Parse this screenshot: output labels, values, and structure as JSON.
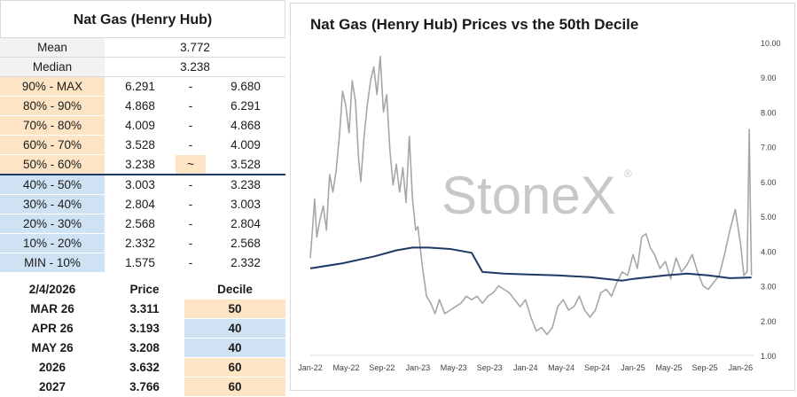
{
  "left_panel": {
    "title": "Nat Gas (Henry Hub)",
    "mean_label": "Mean",
    "mean_value": "3.772",
    "median_label": "Median",
    "median_value": "3.238",
    "deciles": [
      {
        "label": "90% - MAX",
        "low": "6.291",
        "sep": "-",
        "high": "9.680",
        "tier": "top"
      },
      {
        "label": "80% - 90%",
        "low": "4.868",
        "sep": "-",
        "high": "6.291",
        "tier": "top"
      },
      {
        "label": "70% - 80%",
        "low": "4.009",
        "sep": "-",
        "high": "4.868",
        "tier": "top"
      },
      {
        "label": "60% - 70%",
        "low": "3.528",
        "sep": "-",
        "high": "4.009",
        "tier": "top"
      },
      {
        "label": "50% - 60%",
        "low": "3.238",
        "sep": "~",
        "high": "3.528",
        "tier": "top"
      },
      {
        "label": "40% - 50%",
        "low": "3.003",
        "sep": "-",
        "high": "3.238",
        "tier": "bot"
      },
      {
        "label": "30% - 40%",
        "low": "2.804",
        "sep": "-",
        "high": "3.003",
        "tier": "bot"
      },
      {
        "label": "20% - 30%",
        "low": "2.568",
        "sep": "-",
        "high": "2.804",
        "tier": "bot"
      },
      {
        "label": "10% - 20%",
        "low": "2.332",
        "sep": "-",
        "high": "2.568",
        "tier": "bot"
      },
      {
        "label": "MIN - 10%",
        "low": "1.575",
        "sep": "-",
        "high": "2.332",
        "tier": "bot"
      }
    ],
    "price_table": {
      "headers": [
        "2/4/2026",
        "Price",
        "Decile"
      ],
      "rows": [
        {
          "contract": "MAR 26",
          "price": "3.311",
          "decile": "50",
          "tier": "top"
        },
        {
          "contract": "APR 26",
          "price": "3.193",
          "decile": "40",
          "tier": "bot"
        },
        {
          "contract": "MAY 26",
          "price": "3.208",
          "decile": "40",
          "tier": "bot"
        },
        {
          "contract": "2026",
          "price": "3.632",
          "decile": "60",
          "tier": "top"
        },
        {
          "contract": "2027",
          "price": "3.766",
          "decile": "60",
          "tier": "top"
        }
      ]
    }
  },
  "chart_data": {
    "type": "line",
    "title": "Nat Gas (Henry Hub) Prices vs the 50th Decile",
    "watermark": "StoneX",
    "watermark_mark": "®",
    "x_tick_labels": [
      "Jan-22",
      "May-22",
      "Sep-22",
      "Jan-23",
      "May-23",
      "Sep-23",
      "Jan-24",
      "May-24",
      "Sep-24",
      "Jan-25",
      "May-25",
      "Sep-25",
      "Jan-26"
    ],
    "y_tick_labels": [
      "1.00",
      "2.00",
      "3.00",
      "4.00",
      "5.00",
      "6.00",
      "7.00",
      "8.00",
      "9.00",
      "10.00"
    ],
    "ylim": [
      1,
      10
    ],
    "xlim": [
      2022.0,
      2026.12
    ],
    "grid": false,
    "colors": {
      "price": "#a6a6a6",
      "decile": "#1f3864"
    },
    "series": [
      {
        "key": "price",
        "x": [
          2022.0,
          2022.02,
          2022.04,
          2022.06,
          2022.09,
          2022.12,
          2022.15,
          2022.18,
          2022.21,
          2022.24,
          2022.27,
          2022.3,
          2022.33,
          2022.36,
          2022.39,
          2022.42,
          2022.45,
          2022.47,
          2022.5,
          2022.53,
          2022.56,
          2022.59,
          2022.62,
          2022.65,
          2022.68,
          2022.71,
          2022.74,
          2022.77,
          2022.8,
          2022.83,
          2022.86,
          2022.89,
          2022.92,
          2022.95,
          2022.98,
          2023.0,
          2023.04,
          2023.08,
          2023.12,
          2023.16,
          2023.2,
          2023.25,
          2023.3,
          2023.35,
          2023.4,
          2023.45,
          2023.5,
          2023.55,
          2023.6,
          2023.65,
          2023.7,
          2023.75,
          2023.8,
          2023.85,
          2023.9,
          2023.95,
          2024.0,
          2024.05,
          2024.1,
          2024.15,
          2024.2,
          2024.25,
          2024.3,
          2024.35,
          2024.4,
          2024.45,
          2024.5,
          2024.55,
          2024.6,
          2024.65,
          2024.7,
          2024.75,
          2024.8,
          2024.85,
          2024.9,
          2024.95,
          2025.0,
          2025.04,
          2025.08,
          2025.12,
          2025.16,
          2025.2,
          2025.25,
          2025.3,
          2025.35,
          2025.4,
          2025.45,
          2025.5,
          2025.55,
          2025.6,
          2025.65,
          2025.7,
          2025.75,
          2025.8,
          2025.85,
          2025.9,
          2025.95,
          2026.0,
          2026.03,
          2026.06,
          2026.08,
          2026.1
        ],
        "values": [
          3.8,
          4.6,
          5.5,
          4.4,
          4.9,
          5.3,
          4.6,
          6.2,
          5.7,
          6.3,
          7.3,
          8.6,
          8.2,
          7.4,
          8.9,
          8.3,
          6.6,
          6.0,
          7.3,
          8.2,
          8.9,
          9.3,
          8.5,
          9.6,
          8.0,
          8.5,
          6.9,
          5.9,
          6.5,
          5.7,
          6.4,
          5.4,
          7.3,
          5.5,
          4.6,
          4.7,
          3.6,
          2.7,
          2.5,
          2.2,
          2.6,
          2.2,
          2.3,
          2.4,
          2.5,
          2.7,
          2.6,
          2.7,
          2.5,
          2.7,
          2.8,
          3.0,
          2.9,
          2.8,
          2.6,
          2.4,
          2.6,
          2.1,
          1.7,
          1.8,
          1.6,
          1.8,
          2.4,
          2.6,
          2.3,
          2.4,
          2.7,
          2.3,
          2.1,
          2.3,
          2.8,
          2.9,
          2.7,
          3.1,
          3.4,
          3.3,
          3.9,
          3.5,
          4.4,
          4.5,
          4.1,
          3.9,
          3.5,
          3.7,
          3.2,
          3.8,
          3.4,
          3.6,
          3.9,
          3.4,
          3.0,
          2.9,
          3.1,
          3.3,
          3.9,
          4.6,
          5.2,
          4.2,
          3.3,
          3.4,
          7.5,
          3.3
        ]
      },
      {
        "key": "decile",
        "x": [
          2022.0,
          2022.3,
          2022.6,
          2022.8,
          2022.95,
          2023.1,
          2023.3,
          2023.5,
          2023.6,
          2023.8,
          2024.0,
          2024.3,
          2024.6,
          2024.9,
          2025.0,
          2025.3,
          2025.5,
          2025.7,
          2025.9,
          2026.1
        ],
        "values": [
          3.5,
          3.65,
          3.85,
          4.02,
          4.1,
          4.1,
          4.06,
          3.95,
          3.4,
          3.35,
          3.33,
          3.3,
          3.25,
          3.15,
          3.2,
          3.3,
          3.35,
          3.3,
          3.22,
          3.24
        ]
      }
    ]
  }
}
